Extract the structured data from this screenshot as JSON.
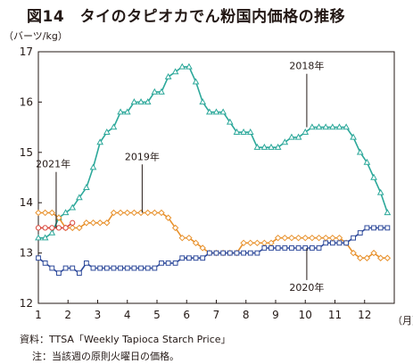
{
  "title": "図14　タイのタピオカでん粉国内価格の推移",
  "source": "資料：TTSA「Weekly Tapioca Starch Price」",
  "note": "注：当該週の原則火曜日の価格。",
  "chart_data": {
    "type": "line",
    "title": "図14　タイのタピオカでん粉国内価格の推移",
    "ylabel": "（バーツ/kg）",
    "xlabel": "（月）",
    "ylim": [
      12,
      17
    ],
    "xlim": [
      1,
      13
    ],
    "yticks": [
      12,
      13,
      14,
      15,
      16,
      17
    ],
    "xticks": [
      1,
      2,
      3,
      4,
      5,
      6,
      7,
      8,
      9,
      10,
      11,
      12
    ],
    "grid": false,
    "legend": "none (series labeled by annotations)",
    "series": [
      {
        "name": "2018年",
        "color": "#2ca89a",
        "marker": "triangle",
        "x": [
          1.0,
          1.23,
          1.46,
          1.69,
          1.92,
          2.15,
          2.38,
          2.62,
          2.85,
          3.08,
          3.31,
          3.54,
          3.77,
          4.0,
          4.23,
          4.46,
          4.69,
          4.92,
          5.15,
          5.38,
          5.62,
          5.85,
          6.08,
          6.31,
          6.54,
          6.77,
          7.0,
          7.23,
          7.46,
          7.69,
          7.92,
          8.15,
          8.38,
          8.62,
          8.85,
          9.08,
          9.31,
          9.54,
          9.77,
          10.0,
          10.23,
          10.46,
          10.69,
          10.92,
          11.15,
          11.38,
          11.62,
          11.85,
          12.08,
          12.31,
          12.54,
          12.77
        ],
        "y": [
          13.3,
          13.3,
          13.4,
          13.7,
          13.8,
          13.9,
          14.1,
          14.3,
          14.7,
          15.2,
          15.4,
          15.5,
          15.8,
          15.8,
          16.0,
          16.0,
          16.0,
          16.2,
          16.2,
          16.5,
          16.6,
          16.7,
          16.7,
          16.4,
          16.0,
          15.8,
          15.8,
          15.8,
          15.6,
          15.4,
          15.4,
          15.4,
          15.1,
          15.1,
          15.1,
          15.1,
          15.2,
          15.3,
          15.3,
          15.4,
          15.5,
          15.5,
          15.5,
          15.5,
          15.5,
          15.5,
          15.3,
          15.0,
          14.8,
          14.5,
          14.2,
          13.8
        ]
      },
      {
        "name": "2019年",
        "color": "#e8922e",
        "marker": "diamond",
        "x": [
          1.0,
          1.23,
          1.46,
          1.69,
          1.92,
          2.15,
          2.38,
          2.62,
          2.85,
          3.08,
          3.31,
          3.54,
          3.77,
          4.0,
          4.23,
          4.46,
          4.69,
          4.92,
          5.15,
          5.38,
          5.62,
          5.85,
          6.08,
          6.31,
          6.54,
          6.77,
          7.0,
          7.23,
          7.46,
          7.69,
          7.92,
          8.15,
          8.38,
          8.62,
          8.85,
          9.08,
          9.31,
          9.54,
          9.77,
          10.0,
          10.23,
          10.46,
          10.69,
          10.92,
          11.15,
          11.38,
          11.62,
          11.85,
          12.08,
          12.31,
          12.54,
          12.77
        ],
        "y": [
          13.8,
          13.8,
          13.8,
          13.7,
          13.5,
          13.5,
          13.5,
          13.6,
          13.6,
          13.6,
          13.6,
          13.8,
          13.8,
          13.8,
          13.8,
          13.8,
          13.8,
          13.8,
          13.8,
          13.7,
          13.5,
          13.3,
          13.3,
          13.2,
          13.1,
          13.0,
          13.0,
          13.0,
          13.0,
          13.0,
          13.2,
          13.2,
          13.2,
          13.2,
          13.2,
          13.3,
          13.3,
          13.3,
          13.3,
          13.3,
          13.3,
          13.3,
          13.3,
          13.3,
          13.3,
          13.2,
          13.0,
          12.9,
          12.9,
          13.0,
          12.9,
          12.9
        ]
      },
      {
        "name": "2020年",
        "color": "#2e4a9b",
        "marker": "square",
        "x": [
          1.0,
          1.23,
          1.46,
          1.69,
          1.92,
          2.15,
          2.38,
          2.62,
          2.85,
          3.08,
          3.31,
          3.54,
          3.77,
          4.0,
          4.23,
          4.46,
          4.69,
          4.92,
          5.15,
          5.38,
          5.62,
          5.85,
          6.08,
          6.31,
          6.54,
          6.77,
          7.0,
          7.23,
          7.46,
          7.69,
          7.92,
          8.15,
          8.38,
          8.62,
          8.85,
          9.08,
          9.31,
          9.54,
          9.77,
          10.0,
          10.23,
          10.46,
          10.69,
          10.92,
          11.15,
          11.38,
          11.62,
          11.85,
          12.08,
          12.31,
          12.54,
          12.77
        ],
        "y": [
          12.9,
          12.8,
          12.7,
          12.6,
          12.7,
          12.7,
          12.6,
          12.8,
          12.7,
          12.7,
          12.7,
          12.7,
          12.7,
          12.7,
          12.7,
          12.7,
          12.7,
          12.7,
          12.8,
          12.8,
          12.8,
          12.9,
          12.9,
          12.9,
          12.9,
          13.0,
          13.0,
          13.0,
          13.0,
          13.0,
          13.0,
          13.0,
          13.0,
          13.1,
          13.1,
          13.1,
          13.1,
          13.1,
          13.1,
          13.1,
          13.1,
          13.1,
          13.2,
          13.2,
          13.2,
          13.2,
          13.3,
          13.4,
          13.5,
          13.5,
          13.5,
          13.5
        ]
      },
      {
        "name": "2021年",
        "color": "#d9463a",
        "marker": "circle",
        "x": [
          1.0,
          1.23,
          1.46,
          1.69,
          1.92,
          2.15
        ],
        "y": [
          13.5,
          13.5,
          13.5,
          13.5,
          13.5,
          13.6
        ]
      }
    ],
    "annotations": [
      {
        "text": "2018年",
        "series": "2018年",
        "at_x": 10.05,
        "at_y": 15.5,
        "label_x": 10.05,
        "label_y": 16.65
      },
      {
        "text": "2019年",
        "series": "2019年",
        "at_x": 4.5,
        "at_y": 13.8,
        "label_x": 4.5,
        "label_y": 14.85
      },
      {
        "text": "2021年",
        "series": "2021年",
        "at_x": 1.6,
        "at_y": 13.5,
        "label_x": 1.5,
        "label_y": 14.7
      },
      {
        "text": "2020年",
        "series": "2020年",
        "at_x": 10.05,
        "at_y": 13.1,
        "label_x": 10.05,
        "label_y": 12.25
      }
    ]
  }
}
